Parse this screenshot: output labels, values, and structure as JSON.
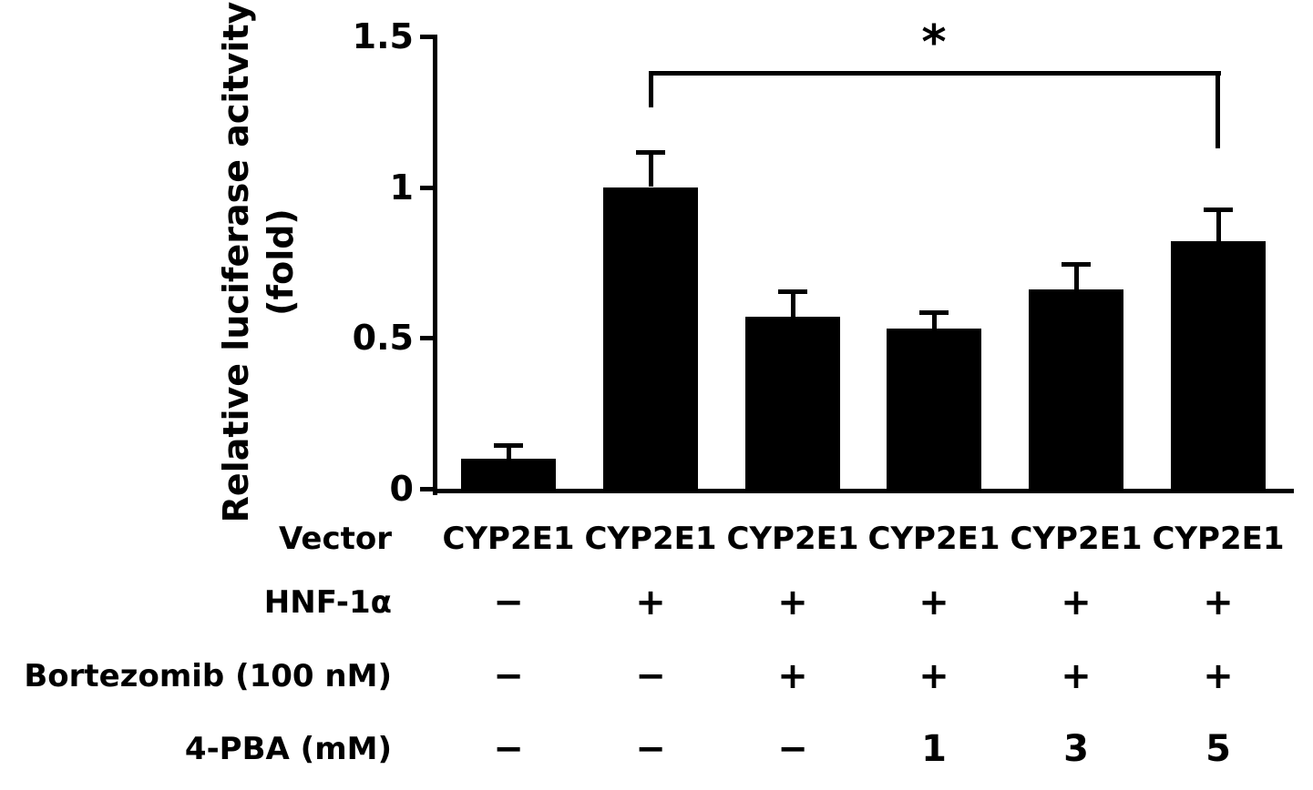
{
  "chart_data": {
    "type": "bar",
    "title": "",
    "ylabel_line1": "Relative luciferase acitvity",
    "ylabel_line2": "(fold)",
    "xlabel": "",
    "ylim": [
      0,
      1.5
    ],
    "yticks": [
      0,
      0.5,
      1,
      1.5
    ],
    "ytick_labels": [
      "0",
      "0.5",
      "1",
      "1.5"
    ],
    "grid": false,
    "legend": "none",
    "bar_color": "#000000",
    "background_color": "#ffffff",
    "values": [
      0.1,
      1.0,
      0.57,
      0.53,
      0.66,
      0.82
    ],
    "errors": [
      0.04,
      0.11,
      0.08,
      0.05,
      0.08,
      0.1
    ],
    "significance": {
      "label": "*",
      "from_bar": 2,
      "to_bar": 6
    },
    "condition_rows": [
      {
        "header": "Vector",
        "values": [
          "CYP2E1",
          "CYP2E1",
          "CYP2E1",
          "CYP2E1",
          "CYP2E1",
          "CYP2E1"
        ]
      },
      {
        "header": "HNF-1α",
        "values": [
          "−",
          "+",
          "+",
          "+",
          "+",
          "+"
        ]
      },
      {
        "header": "Bortezomib (100 nM)",
        "values": [
          "−",
          "−",
          "+",
          "+",
          "+",
          "+"
        ]
      },
      {
        "header": "4-PBA (mM)",
        "values": [
          "−",
          "−",
          "−",
          "1",
          "3",
          "5"
        ]
      }
    ]
  }
}
